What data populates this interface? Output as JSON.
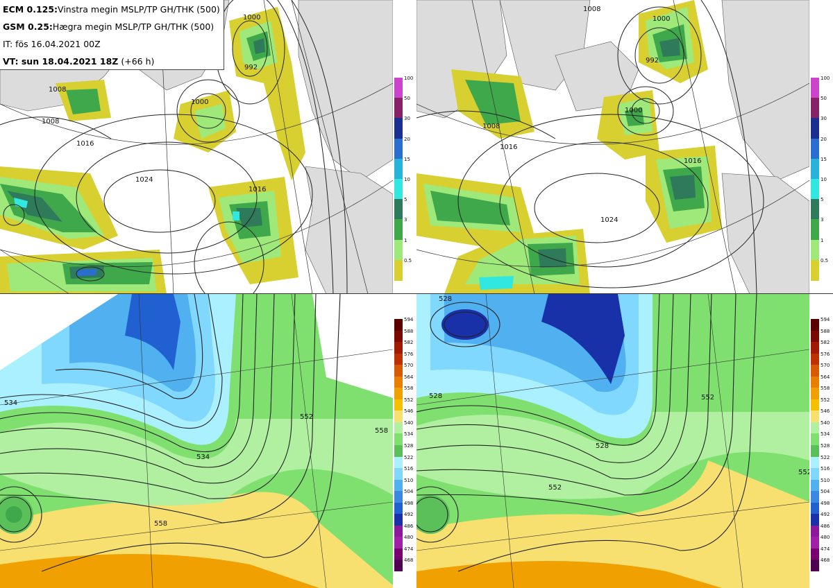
{
  "header": {
    "line1_bold": "ECM 0.125:",
    "line1_text": "Vinstra megin MSLP/TP GH/THK (500)",
    "line2_bold": "GSM 0.25:",
    "line2_text": "Hægra megin MSLP/TP GH/THK (500)",
    "line3": "IT: fös 16.04.2021 00Z",
    "line4_bold": "VT: sun 18.04.2021 18Z",
    "line4_text": "(+66 h)"
  },
  "precip_colorbar": {
    "ticks": [
      "100",
      "50",
      "30",
      "20",
      "15",
      "10",
      "5",
      "3",
      "1",
      "0.5"
    ],
    "colors": [
      "#cc44cc",
      "#882266",
      "#1a2f8f",
      "#2a6fd0",
      "#2ab3d8",
      "#30e8e0",
      "#2f7a5a",
      "#3fa84a",
      "#9fe87a",
      "#d8d030"
    ]
  },
  "thickness_colorbar": {
    "ticks": [
      "594",
      "588",
      "582",
      "576",
      "570",
      "564",
      "558",
      "552",
      "546",
      "540",
      "534",
      "528",
      "522",
      "516",
      "510",
      "504",
      "498",
      "492",
      "486",
      "480",
      "474",
      "468"
    ],
    "colors": [
      "#5a0000",
      "#7a0a00",
      "#a01a00",
      "#c02f00",
      "#d85a00",
      "#e87f00",
      "#f0a000",
      "#f5c000",
      "#f8e070",
      "#b0f0a0",
      "#7fe070",
      "#5cc05a",
      "#aaf0ff",
      "#80d8ff",
      "#50b0f0",
      "#3a88e0",
      "#2060d0",
      "#1830a8",
      "#8a1a9a",
      "#a020a8",
      "#780070",
      "#500050"
    ]
  },
  "map_labels": {
    "tl": [
      "1008",
      "1000",
      "992",
      "1000",
      "1008",
      "1016",
      "1024",
      "1016"
    ],
    "tr": [
      "1000",
      "992",
      "1008",
      "1000",
      "1008",
      "1016",
      "1024",
      "1016"
    ],
    "bl": [
      "534",
      "534",
      "552",
      "558",
      "558"
    ],
    "br": [
      "528",
      "528",
      "528",
      "552",
      "552",
      "552"
    ]
  },
  "colors": {
    "land": "#dcdcdc",
    "sea": "#ffffff",
    "isobar": "#222222"
  }
}
